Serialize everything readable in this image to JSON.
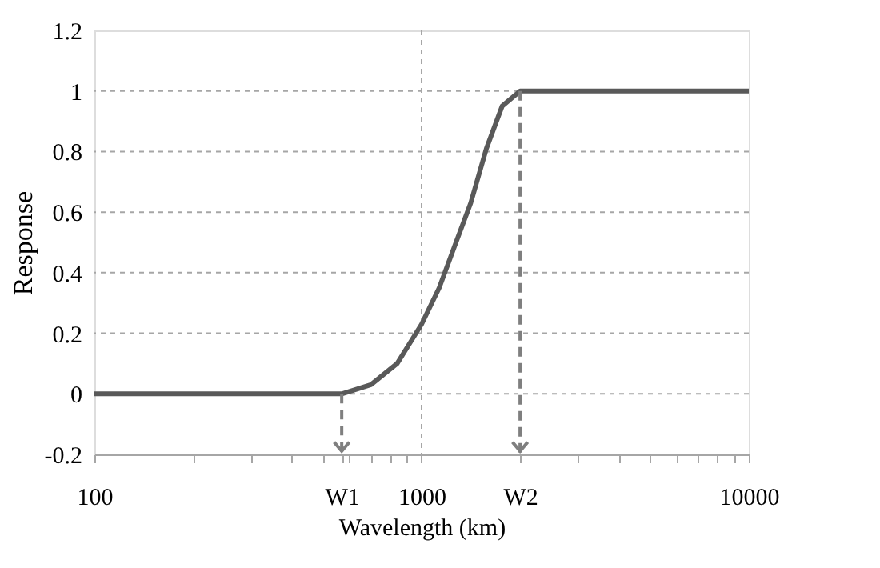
{
  "chart_data": {
    "type": "line",
    "xlabel": "Wavelength (km)",
    "ylabel": "Response",
    "x": [
      100,
      570,
      700,
      842,
      1000,
      1132,
      1264,
      1413,
      1578,
      1763,
      2000,
      10000
    ],
    "series": [
      {
        "color": "#595959",
        "values": [
          0,
          0,
          0.03,
          0.1,
          0.23,
          0.35,
          0.49,
          0.63,
          0.81,
          0.95,
          1,
          1
        ]
      }
    ],
    "log": "x",
    "xlim": [
      100,
      10000
    ],
    "ylim": [
      -0.2,
      1.2
    ],
    "xticks": [
      100,
      {
        "value": 200,
        "label": null
      },
      {
        "value": 300,
        "label": null
      },
      {
        "value": 400,
        "label": null
      },
      {
        "value": 500,
        "label": null
      },
      {
        "value": 570,
        "label": "W1"
      },
      {
        "value": 600,
        "label": null
      },
      {
        "value": 700,
        "label": null
      },
      {
        "value": 800,
        "label": null
      },
      {
        "value": 900,
        "label": null
      },
      1000,
      {
        "value": 2000,
        "label": "W2"
      },
      {
        "value": 3000,
        "label": null
      },
      {
        "value": 4000,
        "label": null
      },
      {
        "value": 5000,
        "label": null
      },
      {
        "value": 6000,
        "label": null
      },
      {
        "value": 7000,
        "label": null
      },
      {
        "value": 8000,
        "label": null
      },
      {
        "value": 9000,
        "label": null
      },
      10000
    ],
    "yticks": [
      -0.2,
      0,
      0.2,
      0.4,
      0.6,
      0.8,
      1,
      1.2
    ],
    "grid": true,
    "marker": "none",
    "line_style": "solid",
    "ref_lines": [
      {
        "axis": "x",
        "value": 570,
        "color": "#7f7f7f",
        "line_style": "dashed"
      },
      {
        "axis": "x",
        "value": 2000,
        "color": "#7f7f7f",
        "line_style": "dashed"
      }
    ]
  }
}
